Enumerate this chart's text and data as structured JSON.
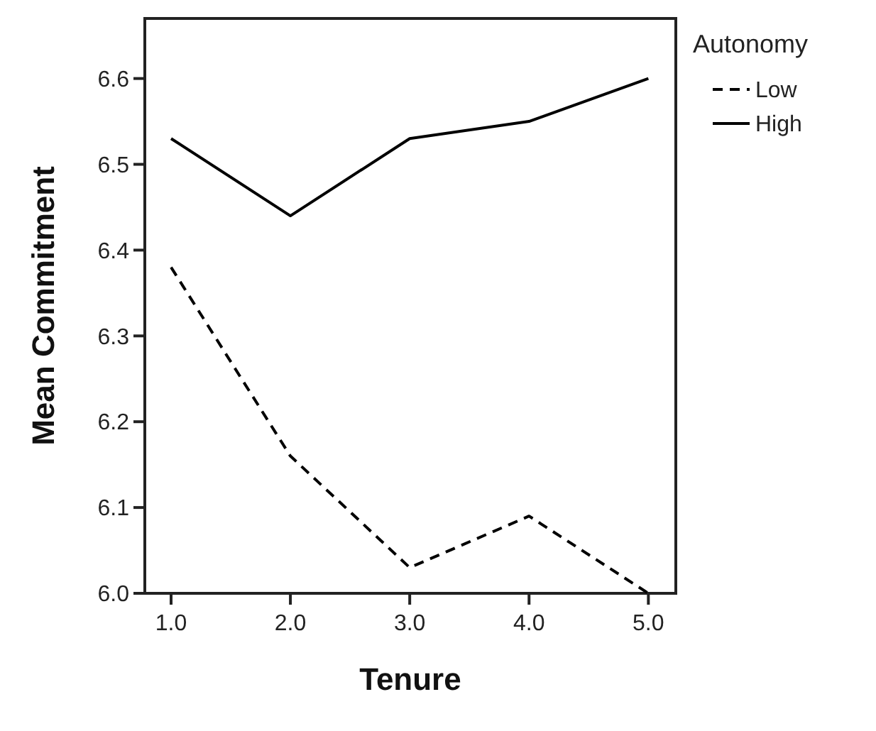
{
  "chart_data": {
    "type": "line",
    "xlabel": "Tenure",
    "ylabel": "Mean Commitment",
    "legend_title": "Autonomy",
    "legend": "top right",
    "grid": false,
    "marker": "none",
    "x": [
      1,
      2,
      3,
      4,
      5
    ],
    "xlim": [
      0.78,
      5.23
    ],
    "xticks": [
      {
        "value": 1,
        "label": "1.0"
      },
      {
        "value": 2,
        "label": "2.0"
      },
      {
        "value": 3,
        "label": "3.0"
      },
      {
        "value": 4,
        "label": "4.0"
      },
      {
        "value": 5,
        "label": "5.0"
      }
    ],
    "ylim": [
      6.0,
      6.67
    ],
    "yticks": [
      {
        "value": 6.0,
        "label": "6.0"
      },
      {
        "value": 6.1,
        "label": "6.1"
      },
      {
        "value": 6.2,
        "label": "6.2"
      },
      {
        "value": 6.3,
        "label": "6.3"
      },
      {
        "value": 6.4,
        "label": "6.4"
      },
      {
        "value": 6.5,
        "label": "6.5"
      },
      {
        "value": 6.6,
        "label": "6.6"
      }
    ],
    "series": [
      {
        "name": "Low",
        "color": "#000000",
        "line_style": "dashed",
        "values": [
          6.38,
          6.16,
          6.03,
          6.09,
          6.0
        ]
      },
      {
        "name": "High",
        "color": "#000000",
        "line_style": "solid",
        "values": [
          6.53,
          6.44,
          6.53,
          6.55,
          6.6
        ]
      }
    ]
  }
}
